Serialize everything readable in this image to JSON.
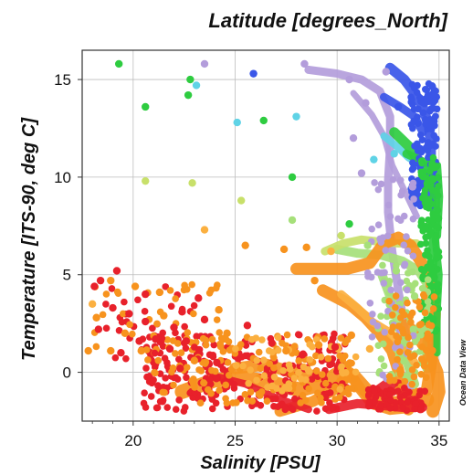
{
  "chart_data": {
    "type": "scatter",
    "title": "Latitude [degrees_North]",
    "xlabel": "Salinity [PSU]",
    "ylabel": "Temperature [ITS-90, deg C]",
    "xlim": [
      17.5,
      35.5
    ],
    "ylim": [
      -2.5,
      16.5
    ],
    "xticks": [
      20,
      25,
      30,
      35
    ],
    "yticks": [
      0,
      5,
      10,
      15
    ],
    "grid": true,
    "watermark": "Ocean Data View",
    "colors": {
      "red": "#e8212b",
      "orange": "#f7931e",
      "light_orange": "#fbb040",
      "yellow_green": "#c8e06a",
      "light_green": "#a6e07a",
      "green": "#2ecc40",
      "cyan": "#5fd3e6",
      "blue": "#3a56e8",
      "lavender": "#b39ddb"
    },
    "points": [
      {
        "x": 19.3,
        "y": 15.8,
        "c": "green"
      },
      {
        "x": 23.5,
        "y": 15.8,
        "c": "lavender"
      },
      {
        "x": 25.9,
        "y": 15.3,
        "c": "blue"
      },
      {
        "x": 28.4,
        "y": 15.8,
        "c": "lavender"
      },
      {
        "x": 22.8,
        "y": 15.0,
        "c": "green"
      },
      {
        "x": 23.1,
        "y": 14.7,
        "c": "cyan"
      },
      {
        "x": 22.7,
        "y": 14.2,
        "c": "green"
      },
      {
        "x": 20.6,
        "y": 13.6,
        "c": "green"
      },
      {
        "x": 25.1,
        "y": 12.8,
        "c": "cyan"
      },
      {
        "x": 26.4,
        "y": 12.9,
        "c": "green"
      },
      {
        "x": 28.0,
        "y": 13.1,
        "c": "cyan"
      },
      {
        "x": 20.6,
        "y": 9.8,
        "c": "yellow_green"
      },
      {
        "x": 22.9,
        "y": 9.7,
        "c": "yellow_green"
      },
      {
        "x": 27.8,
        "y": 10.0,
        "c": "green"
      },
      {
        "x": 25.3,
        "y": 8.8,
        "c": "yellow_green"
      },
      {
        "x": 23.5,
        "y": 7.3,
        "c": "light_orange"
      },
      {
        "x": 25.5,
        "y": 6.5,
        "c": "orange"
      },
      {
        "x": 27.4,
        "y": 6.3,
        "c": "orange"
      },
      {
        "x": 27.8,
        "y": 7.8,
        "c": "light_green"
      },
      {
        "x": 28.5,
        "y": 6.4,
        "c": "orange"
      },
      {
        "x": 18.1,
        "y": 4.4,
        "c": "red"
      },
      {
        "x": 18.4,
        "y": 4.7,
        "c": "red"
      },
      {
        "x": 19.2,
        "y": 5.2,
        "c": "red"
      },
      {
        "x": 18.9,
        "y": 4.7,
        "c": "orange"
      },
      {
        "x": 20.1,
        "y": 4.4,
        "c": "orange"
      },
      {
        "x": 20.6,
        "y": 4.0,
        "c": "red"
      },
      {
        "x": 21.3,
        "y": 4.1,
        "c": "orange"
      },
      {
        "x": 18.0,
        "y": 3.5,
        "c": "light_orange"
      },
      {
        "x": 18.2,
        "y": 2.8,
        "c": "orange"
      },
      {
        "x": 19.0,
        "y": 3.3,
        "c": "red"
      },
      {
        "x": 19.8,
        "y": 3.0,
        "c": "red"
      },
      {
        "x": 18.3,
        "y": 2.2,
        "c": "red"
      },
      {
        "x": 19.6,
        "y": 2.0,
        "c": "orange"
      },
      {
        "x": 20.6,
        "y": 2.6,
        "c": "red"
      },
      {
        "x": 21.5,
        "y": 2.9,
        "c": "orange"
      },
      {
        "x": 22.4,
        "y": 3.1,
        "c": "red"
      },
      {
        "x": 23.2,
        "y": 3.8,
        "c": "red"
      },
      {
        "x": 22.0,
        "y": 2.3,
        "c": "red"
      },
      {
        "x": 23.5,
        "y": 2.7,
        "c": "red"
      },
      {
        "x": 24.2,
        "y": 3.2,
        "c": "orange"
      },
      {
        "x": 19.4,
        "y": 1.0,
        "c": "red"
      },
      {
        "x": 20.3,
        "y": 1.6,
        "c": "red"
      },
      {
        "x": 20.4,
        "y": 1.1,
        "c": "orange"
      },
      {
        "x": 21.1,
        "y": 1.7,
        "c": "red"
      },
      {
        "x": 17.8,
        "y": 1.1,
        "c": "orange"
      },
      {
        "x": 18.9,
        "y": 1.1,
        "c": "orange"
      },
      {
        "x": 21.8,
        "y": 1.2,
        "c": "red"
      },
      {
        "x": 22.6,
        "y": 1.6,
        "c": "red"
      },
      {
        "x": 24.6,
        "y": 2.0,
        "c": "orange"
      },
      {
        "x": 25.6,
        "y": 2.4,
        "c": "red"
      },
      {
        "x": 23.0,
        "y": 0.6,
        "c": "orange"
      },
      {
        "x": 22.3,
        "y": 0.2,
        "c": "red"
      },
      {
        "x": 24.1,
        "y": 0.5,
        "c": "red"
      },
      {
        "x": 26.8,
        "y": 1.5,
        "c": "red"
      },
      {
        "x": 27.5,
        "y": 1.1,
        "c": "orange"
      },
      {
        "x": 28.3,
        "y": 0.9,
        "c": "red"
      },
      {
        "x": 29.1,
        "y": 1.4,
        "c": "orange"
      },
      {
        "x": 29.9,
        "y": 1.3,
        "c": "red"
      },
      {
        "x": 30.7,
        "y": 1.9,
        "c": "orange"
      },
      {
        "x": 31.6,
        "y": 1.2,
        "c": "light_orange"
      },
      {
        "x": 28.9,
        "y": 4.7,
        "c": "orange"
      },
      {
        "x": 29.7,
        "y": 6.2,
        "c": "light_orange"
      },
      {
        "x": 30.2,
        "y": 7.0,
        "c": "yellow_green"
      },
      {
        "x": 30.6,
        "y": 7.6,
        "c": "green"
      },
      {
        "x": 31.5,
        "y": 6.5,
        "c": "light_green"
      },
      {
        "x": 31.2,
        "y": 10.2,
        "c": "lavender"
      },
      {
        "x": 31.8,
        "y": 10.9,
        "c": "cyan"
      },
      {
        "x": 30.6,
        "y": 15.0,
        "c": "lavender"
      },
      {
        "x": 31.4,
        "y": 13.8,
        "c": "lavender"
      },
      {
        "x": 32.4,
        "y": 15.4,
        "c": "lavender"
      },
      {
        "x": 33.0,
        "y": 13.6,
        "c": "blue"
      },
      {
        "x": 32.8,
        "y": 11.2,
        "c": "cyan"
      },
      {
        "x": 33.7,
        "y": 9.5,
        "c": "lavender"
      },
      {
        "x": 32.9,
        "y": 5.2,
        "c": "light_green"
      },
      {
        "x": 33.8,
        "y": 3.9,
        "c": "light_green"
      },
      {
        "x": 30.8,
        "y": 12.0,
        "c": "lavender"
      }
    ],
    "curves": [
      {
        "c": "lavender",
        "w": 9,
        "pts": [
          [
            28.6,
            15.5
          ],
          [
            30.0,
            15.3
          ],
          [
            31.2,
            15.0
          ],
          [
            32.1,
            14.4
          ],
          [
            32.6,
            13.1
          ],
          [
            32.6,
            11.5
          ],
          [
            32.5,
            9.8
          ],
          [
            32.5,
            8.2
          ],
          [
            32.7,
            6.2
          ],
          [
            33.0,
            4.2
          ],
          [
            33.3,
            2.4
          ],
          [
            33.5,
            0.6
          ],
          [
            33.6,
            -0.8
          ]
        ]
      },
      {
        "c": "lavender",
        "w": 7,
        "pts": [
          [
            30.8,
            14.3
          ],
          [
            31.7,
            13.2
          ],
          [
            32.3,
            12.1
          ],
          [
            32.7,
            10.6
          ],
          [
            33.4,
            9.1
          ],
          [
            33.9,
            8.0
          ]
        ]
      },
      {
        "c": "blue",
        "w": 11,
        "pts": [
          [
            32.6,
            15.6
          ],
          [
            33.3,
            15.0
          ],
          [
            33.8,
            14.3
          ],
          [
            34.2,
            13.6
          ],
          [
            34.5,
            12.6
          ],
          [
            34.6,
            11.6
          ],
          [
            34.6,
            10.0
          ],
          [
            34.6,
            8.5
          ]
        ]
      },
      {
        "c": "blue",
        "w": 9,
        "pts": [
          [
            32.3,
            14.1
          ],
          [
            33.1,
            13.6
          ],
          [
            33.8,
            13.1
          ],
          [
            34.2,
            12.3
          ]
        ]
      },
      {
        "c": "cyan",
        "w": 8,
        "pts": [
          [
            32.3,
            12.1
          ],
          [
            32.9,
            11.6
          ],
          [
            33.5,
            11.0
          ],
          [
            34.1,
            10.6
          ],
          [
            34.5,
            10.2
          ]
        ]
      },
      {
        "c": "green",
        "w": 11,
        "pts": [
          [
            32.8,
            12.3
          ],
          [
            33.5,
            11.6
          ],
          [
            34.0,
            10.8
          ],
          [
            34.5,
            10.3
          ],
          [
            34.8,
            9.3
          ],
          [
            34.8,
            7.6
          ],
          [
            34.7,
            6.0
          ],
          [
            34.6,
            4.0
          ],
          [
            34.5,
            2.0
          ],
          [
            34.6,
            0.3
          ]
        ]
      },
      {
        "c": "green",
        "w": 9,
        "pts": [
          [
            33.4,
            11.2
          ],
          [
            34.2,
            10.8
          ],
          [
            34.9,
            10.6
          ],
          [
            35.0,
            9.0
          ],
          [
            34.9,
            7.0
          ]
        ]
      },
      {
        "c": "light_green",
        "w": 10,
        "pts": [
          [
            30.0,
            6.3
          ],
          [
            31.0,
            6.1
          ],
          [
            32.2,
            6.0
          ],
          [
            33.2,
            5.7
          ],
          [
            34.0,
            5.2
          ],
          [
            34.5,
            4.4
          ],
          [
            34.6,
            3.0
          ],
          [
            34.4,
            1.5
          ],
          [
            34.4,
            0.2
          ]
        ]
      },
      {
        "c": "light_green",
        "w": 10,
        "pts": [
          [
            32.2,
            5.0
          ],
          [
            32.7,
            3.6
          ],
          [
            33.1,
            2.1
          ],
          [
            33.4,
            0.6
          ],
          [
            33.8,
            -0.6
          ]
        ]
      },
      {
        "c": "yellow_green",
        "w": 9,
        "pts": [
          [
            29.4,
            6.2
          ],
          [
            30.3,
            6.6
          ],
          [
            31.2,
            6.8
          ],
          [
            32.0,
            6.7
          ],
          [
            33.0,
            6.6
          ],
          [
            33.9,
            6.6
          ]
        ]
      },
      {
        "c": "orange",
        "w": 13,
        "pts": [
          [
            28.0,
            5.3
          ],
          [
            29.2,
            5.3
          ],
          [
            30.5,
            5.3
          ],
          [
            31.6,
            5.6
          ],
          [
            32.3,
            6.6
          ],
          [
            33.0,
            6.9
          ],
          [
            33.6,
            6.5
          ],
          [
            34.1,
            5.7
          ],
          [
            34.6,
            4.8
          ],
          [
            34.8,
            3.0
          ],
          [
            34.7,
            1.0
          ],
          [
            34.4,
            -0.9
          ]
        ]
      },
      {
        "c": "orange",
        "w": 13,
        "pts": [
          [
            29.3,
            4.2
          ],
          [
            30.6,
            3.5
          ],
          [
            31.4,
            2.8
          ],
          [
            32.1,
            2.0
          ],
          [
            32.7,
            1.1
          ],
          [
            33.0,
            0.1
          ],
          [
            33.2,
            -1.1
          ],
          [
            33.5,
            -1.9
          ]
        ]
      },
      {
        "c": "light_orange",
        "w": 9,
        "pts": [
          [
            30.2,
            4.0
          ],
          [
            31.0,
            3.3
          ],
          [
            31.7,
            2.6
          ],
          [
            32.5,
            2.1
          ],
          [
            33.3,
            1.3
          ],
          [
            33.8,
            0.5
          ]
        ]
      },
      {
        "c": "orange",
        "w": 16,
        "pts": [
          [
            22.4,
            -1.0
          ],
          [
            24.0,
            -0.4
          ],
          [
            25.6,
            -0.3
          ],
          [
            27.0,
            -0.6
          ],
          [
            28.2,
            -0.9
          ],
          [
            29.2,
            -0.6
          ],
          [
            30.0,
            -0.1
          ],
          [
            30.8,
            -0.2
          ],
          [
            31.4,
            -0.9
          ],
          [
            32.0,
            -1.5
          ],
          [
            32.9,
            -1.6
          ],
          [
            33.6,
            -1.6
          ],
          [
            34.4,
            -1.4
          ]
        ]
      },
      {
        "c": "orange",
        "w": 12,
        "pts": [
          [
            27.2,
            -2.0
          ],
          [
            28.8,
            -1.5
          ],
          [
            30.0,
            -0.8
          ],
          [
            30.6,
            0.0
          ],
          [
            31.1,
            -0.8
          ],
          [
            31.7,
            -1.6
          ],
          [
            32.6,
            -1.9
          ],
          [
            33.6,
            -1.8
          ]
        ]
      },
      {
        "c": "orange",
        "w": 13,
        "pts": [
          [
            25.0,
            0.2
          ],
          [
            26.5,
            0.4
          ],
          [
            27.8,
            0.0
          ],
          [
            29.0,
            -0.2
          ]
        ]
      },
      {
        "c": "orange",
        "w": 14,
        "pts": [
          [
            33.4,
            2.4
          ],
          [
            34.0,
            1.8
          ],
          [
            34.5,
            1.0
          ],
          [
            34.9,
            0.0
          ],
          [
            35.0,
            -1.0
          ],
          [
            34.7,
            -2.0
          ]
        ]
      },
      {
        "c": "red",
        "w": 10,
        "pts": [
          [
            29.6,
            -1.9
          ],
          [
            31.0,
            -1.6
          ],
          [
            32.2,
            -1.7
          ],
          [
            33.2,
            -1.8
          ],
          [
            34.2,
            -1.8
          ]
        ]
      },
      {
        "c": "red",
        "w": 10,
        "pts": [
          [
            31.6,
            -1.2
          ],
          [
            32.4,
            -0.6
          ],
          [
            33.0,
            -0.6
          ],
          [
            33.6,
            -1.3
          ],
          [
            34.1,
            -1.7
          ]
        ]
      },
      {
        "c": "red",
        "w": 8,
        "pts": [
          [
            24.0,
            -0.2
          ],
          [
            25.5,
            -0.6
          ],
          [
            27.0,
            -1.3
          ],
          [
            28.6,
            -1.9
          ]
        ]
      },
      {
        "c": "green",
        "w": 8,
        "pts": [
          [
            34.8,
            7.0
          ],
          [
            35.0,
            5.0
          ],
          [
            34.9,
            3.0
          ],
          [
            34.9,
            1.0
          ]
        ]
      }
    ],
    "clusters": [
      {
        "c": "red",
        "n": 260,
        "xmin": 20.5,
        "xmax": 30.5,
        "ymin": -2.0,
        "ymax": 2.0
      },
      {
        "c": "orange",
        "n": 150,
        "xmin": 21.0,
        "xmax": 31.0,
        "ymin": -1.6,
        "ymax": 2.0
      },
      {
        "c": "light_orange",
        "n": 50,
        "xmin": 25.0,
        "xmax": 31.0,
        "ymin": -1.0,
        "ymax": 1.8
      },
      {
        "c": "red",
        "n": 40,
        "xmin": 18.5,
        "xmax": 23.5,
        "ymin": 0.5,
        "ymax": 4.5
      },
      {
        "c": "orange",
        "n": 35,
        "xmin": 18.0,
        "xmax": 24.5,
        "ymin": 0.5,
        "ymax": 4.5
      },
      {
        "c": "blue",
        "n": 130,
        "xmin": 33.6,
        "xmax": 34.9,
        "ymin": 8.5,
        "ymax": 14.8
      },
      {
        "c": "green",
        "n": 130,
        "xmin": 34.1,
        "xmax": 35.0,
        "ymin": 2.0,
        "ymax": 11.0
      },
      {
        "c": "light_green",
        "n": 80,
        "xmin": 32.0,
        "xmax": 34.6,
        "ymin": -0.5,
        "ymax": 5.5
      },
      {
        "c": "lavender",
        "n": 60,
        "xmin": 31.5,
        "xmax": 33.8,
        "ymin": -0.5,
        "ymax": 10.0
      },
      {
        "c": "orange",
        "n": 70,
        "xmin": 32.5,
        "xmax": 34.8,
        "ymin": -1.5,
        "ymax": 4.0
      },
      {
        "c": "red",
        "n": 50,
        "xmin": 31.5,
        "xmax": 34.5,
        "ymin": -2.0,
        "ymax": -0.8
      }
    ]
  }
}
